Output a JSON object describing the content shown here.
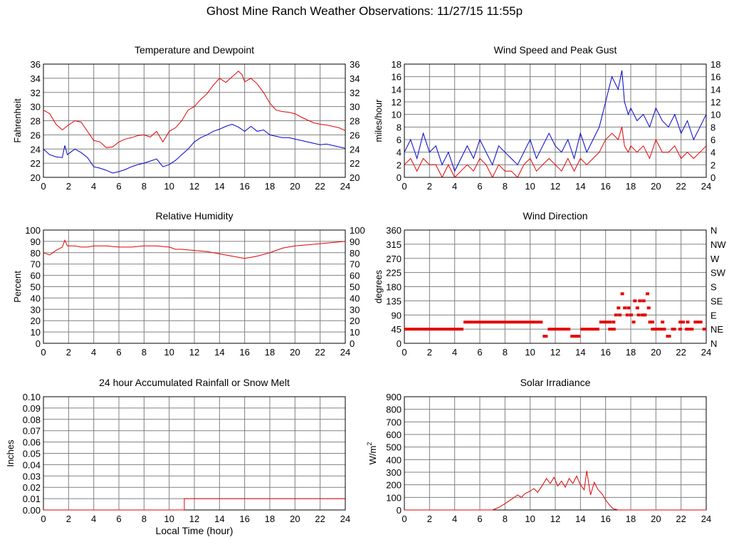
{
  "page": {
    "title": "Ghost Mine Ranch Weather Observations: 11/27/15 11:55p"
  },
  "colors": {
    "grid": "#808080",
    "axis": "#000000",
    "red": "#e60000",
    "blue": "#0000cc"
  },
  "chart_data": [
    {
      "id": "temp",
      "type": "line",
      "title": "Temperature and Dewpoint",
      "ylabel": "Fahrenheit",
      "xlabel": "",
      "xlim": [
        0,
        24
      ],
      "ylim": [
        20,
        36
      ],
      "xticks": [
        0,
        2,
        4,
        6,
        8,
        10,
        12,
        14,
        16,
        18,
        20,
        22,
        24
      ],
      "yticks": [
        20,
        22,
        24,
        26,
        28,
        30,
        32,
        34,
        36
      ],
      "right_ticks": [
        "20",
        "22",
        "24",
        "26",
        "28",
        "30",
        "32",
        "34",
        "36"
      ],
      "grid": true,
      "series": [
        {
          "color": "#e60000",
          "x": [
            0,
            0.5,
            1,
            1.5,
            2,
            2.5,
            3,
            3.5,
            4,
            4.5,
            5,
            5.5,
            6,
            6.5,
            7,
            7.5,
            8,
            8.5,
            9,
            9.5,
            10,
            10.5,
            11,
            11.5,
            12,
            12.5,
            13,
            13.5,
            14,
            14.5,
            15,
            15.5,
            15.8,
            16,
            16.5,
            17,
            17.5,
            18,
            18.5,
            19,
            19.5,
            20,
            20.5,
            21,
            21.5,
            22,
            22.5,
            23,
            23.5,
            24
          ],
          "y": [
            29.5,
            29,
            27.5,
            26.7,
            27.4,
            28,
            27.8,
            26.5,
            25.2,
            25,
            24.2,
            24.3,
            25,
            25.4,
            25.6,
            25.9,
            26,
            25.7,
            26.5,
            25,
            26.5,
            27,
            28,
            29.5,
            30,
            31,
            31.8,
            33,
            34,
            33.4,
            34.2,
            35,
            34.5,
            33.5,
            34,
            33.2,
            32,
            30.5,
            29.5,
            29.3,
            29.2,
            29,
            28.5,
            28.1,
            27.7,
            27.5,
            27.4,
            27.2,
            27,
            26.6
          ]
        },
        {
          "color": "#0000cc",
          "x": [
            0,
            0.5,
            1,
            1.5,
            1.7,
            1.9,
            2.2,
            2.5,
            3,
            3.5,
            4,
            4.5,
            5,
            5.5,
            6,
            6.5,
            7,
            7.5,
            8,
            8.5,
            9,
            9.5,
            10,
            10.5,
            11,
            11.5,
            12,
            12.5,
            13,
            13.5,
            14,
            14.5,
            15,
            15.5,
            16,
            16.5,
            17,
            17.5,
            18,
            18.5,
            19,
            19.5,
            20,
            20.5,
            21,
            21.5,
            22,
            22.5,
            23,
            23.5,
            24
          ],
          "y": [
            24,
            23.2,
            22.9,
            22.8,
            24.5,
            23.2,
            23.6,
            24,
            23.5,
            22.8,
            21.5,
            21.3,
            21,
            20.6,
            20.8,
            21.1,
            21.5,
            21.8,
            22,
            22.3,
            22.6,
            21.5,
            21.8,
            22.4,
            23.2,
            24,
            25,
            25.6,
            26,
            26.5,
            26.8,
            27.2,
            27.5,
            27.1,
            26.5,
            27.2,
            26.5,
            26.7,
            26,
            25.8,
            25.6,
            25.6,
            25.4,
            25.2,
            25,
            24.8,
            24.6,
            24.7,
            24.5,
            24.3,
            24.1
          ]
        }
      ]
    },
    {
      "id": "wind",
      "type": "line",
      "title": "Wind Speed and Peak Gust",
      "ylabel": "miles/hour",
      "xlabel": "",
      "xlim": [
        0,
        24
      ],
      "ylim": [
        0,
        18
      ],
      "xticks": [
        0,
        2,
        4,
        6,
        8,
        10,
        12,
        14,
        16,
        18,
        20,
        22,
        24
      ],
      "yticks": [
        0,
        2,
        4,
        6,
        8,
        10,
        12,
        14,
        16,
        18
      ],
      "right_ticks": [
        "0",
        "2",
        "4",
        "6",
        "8",
        "10",
        "12",
        "14",
        "16",
        "18"
      ],
      "grid": true,
      "series": [
        {
          "color": "#0000cc",
          "x": [
            0,
            0.5,
            1,
            1.5,
            2,
            2.5,
            3,
            3.5,
            4,
            4.5,
            5,
            5.5,
            6,
            6.5,
            7,
            7.5,
            8,
            8.5,
            9,
            9.5,
            10,
            10.5,
            11,
            11.5,
            12,
            12.5,
            13,
            13.5,
            14,
            14.5,
            15,
            15.5,
            16,
            16.5,
            17,
            17.3,
            17.5,
            17.8,
            18,
            18.5,
            19,
            19.5,
            20,
            20.5,
            21,
            21.5,
            22,
            22.5,
            23,
            23.5,
            24
          ],
          "y": [
            4,
            6,
            3,
            7,
            4,
            5,
            2,
            4,
            1,
            3,
            5,
            3,
            6,
            4,
            2,
            5,
            4,
            3,
            2,
            4,
            6,
            3,
            5,
            7,
            5,
            4,
            6,
            3,
            7,
            4,
            6,
            8,
            12,
            16,
            14,
            17,
            12,
            10,
            11,
            9,
            10,
            8,
            11,
            9,
            8,
            10,
            7,
            9,
            6,
            8,
            10
          ]
        },
        {
          "color": "#e60000",
          "x": [
            0,
            0.5,
            1,
            1.5,
            2,
            2.5,
            3,
            3.5,
            4,
            4.5,
            5,
            5.5,
            6,
            6.5,
            7,
            7.5,
            8,
            8.5,
            9,
            9.5,
            10,
            10.5,
            11,
            11.5,
            12,
            12.5,
            13,
            13.5,
            14,
            14.5,
            15,
            15.5,
            16,
            16.5,
            17,
            17.3,
            17.5,
            17.8,
            18,
            18.5,
            19,
            19.5,
            20,
            20.5,
            21,
            21.5,
            22,
            22.5,
            23,
            23.5,
            24
          ],
          "y": [
            2,
            3,
            1,
            3,
            2,
            2,
            0,
            2,
            0,
            1,
            2,
            1,
            3,
            2,
            0,
            2,
            1,
            1,
            0,
            2,
            3,
            1,
            2,
            3,
            2,
            1,
            3,
            1,
            3,
            2,
            3,
            4,
            6,
            7,
            6,
            8,
            5,
            4,
            5,
            4,
            5,
            3,
            6,
            4,
            4,
            5,
            3,
            4,
            3,
            4,
            5
          ]
        }
      ]
    },
    {
      "id": "rh",
      "type": "line",
      "title": "Relative Humidity",
      "ylabel": "Percent",
      "xlabel": "",
      "xlim": [
        0,
        24
      ],
      "ylim": [
        0,
        100
      ],
      "xticks": [
        0,
        2,
        4,
        6,
        8,
        10,
        12,
        14,
        16,
        18,
        20,
        22,
        24
      ],
      "yticks": [
        0,
        10,
        20,
        30,
        40,
        50,
        60,
        70,
        80,
        90,
        100
      ],
      "right_ticks": [
        "0",
        "10",
        "20",
        "30",
        "40",
        "50",
        "60",
        "70",
        "80",
        "90",
        "100"
      ],
      "grid": true,
      "series": [
        {
          "color": "#e60000",
          "x": [
            0,
            0.5,
            1,
            1.5,
            1.7,
            1.9,
            2.5,
            3,
            3.5,
            4,
            5,
            6,
            7,
            8,
            9,
            10,
            10.5,
            11,
            12,
            13,
            14,
            15,
            15.5,
            16,
            16.5,
            17,
            18,
            19,
            20,
            21,
            22,
            23,
            24
          ],
          "y": [
            80,
            78,
            82,
            85,
            91,
            86,
            86,
            85,
            85,
            86,
            86,
            85,
            85,
            86,
            86,
            85,
            83,
            83,
            82,
            81,
            79,
            77,
            76,
            75,
            76,
            77,
            80,
            84,
            86,
            87,
            88,
            89,
            90
          ]
        }
      ]
    },
    {
      "id": "dir",
      "type": "scatter",
      "title": "Wind Direction",
      "ylabel": "degrees",
      "xlabel": "",
      "xlim": [
        0,
        24
      ],
      "ylim": [
        0,
        360
      ],
      "xticks": [
        0,
        2,
        4,
        6,
        8,
        10,
        12,
        14,
        16,
        18,
        20,
        22,
        24
      ],
      "yticks": [
        0,
        45,
        90,
        135,
        180,
        225,
        270,
        315,
        360
      ],
      "right_ticks": [
        "N",
        "NE",
        "E",
        "SE",
        "S",
        "SW",
        "W",
        "NW",
        "N"
      ],
      "grid": true,
      "series": [
        {
          "color": "#e60000",
          "segments": [
            {
              "x0": 0,
              "x1": 4.7,
              "y": 45
            },
            {
              "x0": 4.7,
              "x1": 11,
              "y": 67.5
            },
            {
              "x0": 11,
              "x1": 11.4,
              "y": 22.5
            },
            {
              "x0": 11.4,
              "x1": 13.2,
              "y": 45
            },
            {
              "x0": 13.2,
              "x1": 14,
              "y": 22.5
            },
            {
              "x0": 14,
              "x1": 15.5,
              "y": 45
            },
            {
              "x0": 15.5,
              "x1": 16.2,
              "y": 67.5
            },
            {
              "x0": 16.2,
              "x1": 16.8,
              "y": 45
            },
            {
              "x0": 19.6,
              "x1": 20.8,
              "y": 45
            },
            {
              "x0": 20.8,
              "x1": 21.2,
              "y": 22.5
            },
            {
              "x0": 21.2,
              "x1": 21.6,
              "y": 45
            },
            {
              "x0": 21.8,
              "x1": 22.3,
              "y": 67.5
            },
            {
              "x0": 22.3,
              "x1": 23,
              "y": 45
            },
            {
              "x0": 23,
              "x1": 23.7,
              "y": 67.5
            },
            {
              "x0": 23.7,
              "x1": 24,
              "y": 45
            }
          ],
          "points": [
            [
              16.3,
              67.5
            ],
            [
              16.6,
              67.5
            ],
            [
              16.8,
              90
            ],
            [
              17,
              112.5
            ],
            [
              17.1,
              90
            ],
            [
              17.3,
              157.5
            ],
            [
              17.5,
              112.5
            ],
            [
              17.7,
              90
            ],
            [
              17.8,
              112.5
            ],
            [
              18,
              90
            ],
            [
              18.2,
              67.5
            ],
            [
              18.3,
              135
            ],
            [
              18.5,
              112.5
            ],
            [
              18.6,
              90
            ],
            [
              18.7,
              135
            ],
            [
              18.9,
              90
            ],
            [
              19.0,
              135
            ],
            [
              19.1,
              90
            ],
            [
              19.3,
              157.5
            ],
            [
              19.4,
              112.5
            ],
            [
              19.5,
              67.5
            ],
            [
              19.7,
              67.5
            ],
            [
              20.5,
              67.5
            ],
            [
              21.9,
              45
            ],
            [
              22.5,
              67.5
            ]
          ]
        }
      ]
    },
    {
      "id": "rain",
      "type": "line",
      "title": "24 hour Accumulated Rainfall or Snow Melt",
      "ylabel": "Inches",
      "xlabel": "Local Time (hour)",
      "xlim": [
        0,
        24
      ],
      "ylim": [
        0,
        0.1
      ],
      "xticks": [
        0,
        2,
        4,
        6,
        8,
        10,
        12,
        14,
        16,
        18,
        20,
        22,
        24
      ],
      "yticks": [
        0,
        0.01,
        0.02,
        0.03,
        0.04,
        0.05,
        0.06,
        0.07,
        0.08,
        0.09,
        0.1
      ],
      "ytick_labels": [
        "0.00",
        "0.01",
        "0.02",
        "0.03",
        "0.04",
        "0.05",
        "0.06",
        "0.07",
        "0.08",
        "0.09",
        "0.10"
      ],
      "right_ticks": [],
      "grid": true,
      "series": [
        {
          "color": "#e60000",
          "x": [
            0,
            11.2,
            11.2,
            24
          ],
          "y": [
            0,
            0,
            0.01,
            0.01
          ]
        }
      ]
    },
    {
      "id": "solar",
      "type": "line",
      "title": "Solar Irradiance",
      "ylabel": "W/m",
      "ylabel_sup": "2",
      "xlabel": "",
      "xlim": [
        0,
        24
      ],
      "ylim": [
        0,
        900
      ],
      "xticks": [
        0,
        2,
        4,
        6,
        8,
        10,
        12,
        14,
        16,
        18,
        20,
        22,
        24
      ],
      "yticks": [
        0,
        100,
        200,
        300,
        400,
        500,
        600,
        700,
        800,
        900
      ],
      "right_ticks": [],
      "grid": true,
      "series": [
        {
          "color": "#e60000",
          "x": [
            0,
            7,
            7.5,
            8,
            8.3,
            8.6,
            9,
            9.3,
            9.6,
            10,
            10.3,
            10.6,
            11,
            11.3,
            11.6,
            11.9,
            12.2,
            12.5,
            12.8,
            13.1,
            13.4,
            13.7,
            14,
            14.3,
            14.5,
            14.8,
            15.1,
            15.4,
            15.7,
            16,
            16.3,
            16.6,
            17,
            24
          ],
          "y": [
            0,
            0,
            20,
            50,
            70,
            90,
            120,
            100,
            130,
            150,
            170,
            140,
            200,
            250,
            210,
            260,
            190,
            230,
            180,
            250,
            210,
            270,
            200,
            160,
            310,
            120,
            220,
            160,
            130,
            80,
            40,
            10,
            0,
            0
          ]
        }
      ]
    }
  ]
}
